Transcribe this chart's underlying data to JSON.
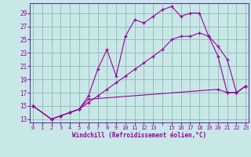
{
  "xlabel": "Windchill (Refroidissement éolien,°C)",
  "background_color": "#c8e8e8",
  "grid_color": "#99bbbb",
  "line_color": "#990099",
  "spine_color": "#6633aa",
  "x_ticks": [
    0,
    1,
    2,
    3,
    4,
    5,
    6,
    7,
    8,
    9,
    10,
    11,
    12,
    13,
    14,
    15,
    16,
    17,
    18,
    19,
    20,
    21,
    22,
    23
  ],
  "x_tick_labels": [
    "0",
    "1",
    "2",
    "3",
    "4",
    "5",
    "6",
    "7",
    "8",
    "9",
    "10",
    "11",
    "12",
    "13",
    "",
    "15",
    "16",
    "17",
    "18",
    "19",
    "20",
    "21",
    "22",
    "23"
  ],
  "y_ticks": [
    13,
    15,
    17,
    19,
    21,
    23,
    25,
    27,
    29
  ],
  "xlim": [
    -0.3,
    23.3
  ],
  "ylim": [
    12.5,
    30.5
  ],
  "lines": [
    {
      "x": [
        0,
        2,
        3,
        4,
        5,
        6,
        7,
        8,
        9,
        10,
        11,
        12,
        13,
        14,
        15,
        16,
        17,
        18,
        19,
        20,
        21,
        22,
        23
      ],
      "y": [
        15,
        13,
        13.5,
        14,
        14.5,
        16.5,
        20.5,
        23.5,
        19.5,
        25.5,
        28,
        27.5,
        28.5,
        29.5,
        30,
        28.5,
        29,
        29,
        25.5,
        22.5,
        17,
        17,
        18
      ]
    },
    {
      "x": [
        0,
        2,
        3,
        4,
        5,
        6,
        7,
        8,
        9,
        10,
        11,
        12,
        13,
        14,
        15,
        16,
        17,
        18,
        19,
        20,
        21,
        22,
        23
      ],
      "y": [
        15,
        13,
        13.5,
        14,
        14.5,
        15.5,
        16.5,
        17.5,
        18.5,
        19.5,
        20.5,
        21.5,
        22.5,
        23.5,
        25,
        25.5,
        25.5,
        26,
        25.5,
        24,
        22,
        17,
        18
      ]
    },
    {
      "x": [
        0,
        2,
        3,
        4,
        5,
        6,
        20,
        21,
        22,
        23
      ],
      "y": [
        15,
        13,
        13.5,
        14,
        14.5,
        16,
        17.5,
        17,
        17,
        18
      ]
    }
  ]
}
